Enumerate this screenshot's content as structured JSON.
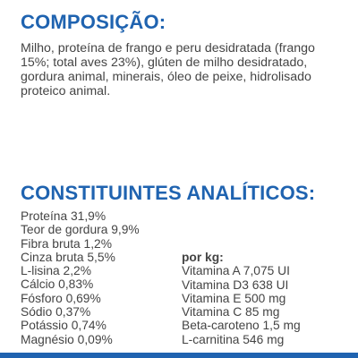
{
  "composition": {
    "heading": "COMPOSIÇÃO:",
    "text": "Milho, proteína de frango e peru desidratada (frango 15%; total aves 23%), glúten de milho desidratado, gordura animal, minerais, óleo de peixe, hidrolisado proteico animal."
  },
  "constituents": {
    "heading": "CONSTITUINTES ANALÍTICOS:",
    "analytical": [
      "Proteína 31,9%",
      "Teor de gordura 9,9%",
      "Fibra bruta 1,2%",
      "Cinza bruta 5,5%",
      "L-lisina 2,2%",
      "Cálcio 0,83%",
      "Fósforo 0,69%",
      "Sódio 0,37%",
      "Potássio 0,74%",
      "Magnésio 0,09%"
    ],
    "per_kg_label": "por kg:",
    "per_kg": [
      "Vitamina A 7,075 UI",
      "Vitamina D3 638 UI",
      "Vitamina E 500 mg",
      "Vitamina C 85 mg",
      "Beta-caroteno 1,5 mg",
      "L-carnitina 546 mg"
    ]
  },
  "colors": {
    "heading": "#1f63b0",
    "text": "#444444",
    "band": "#1f63b0"
  }
}
